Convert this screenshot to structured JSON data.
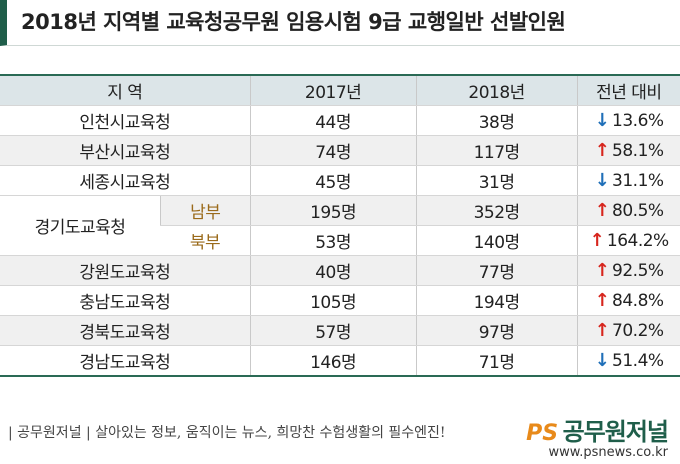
{
  "header": {
    "title": "2018년 지역별 교육청공무원 임용시험 9급 교행일반 선발인원"
  },
  "table": {
    "columns": [
      "지 역",
      "2017년",
      "2018년",
      "전년 대비"
    ],
    "rows": [
      {
        "region": "인천시교육청",
        "y2017": "44명",
        "y2018": "38명",
        "change": "13.6%"
      },
      {
        "region": "부산시교육청",
        "y2017": "74명",
        "y2018": "117명",
        "change": "58.1%"
      },
      {
        "region": "세종시교육청",
        "y2017": "45명",
        "y2018": "31명",
        "change": "31.1%"
      },
      {
        "region": "경기도교육청",
        "subrows": [
          {
            "sub": "남부",
            "y2017": "195명",
            "y2018": "352명",
            "change": "80.5%"
          },
          {
            "sub": "북부",
            "y2017": "53명",
            "y2018": "140명",
            "change": "164.2%"
          }
        ]
      },
      {
        "region": "강원도교육청",
        "y2017": "40명",
        "y2018": "77명",
        "change": "92.5%"
      },
      {
        "region": "충남도교육청",
        "y2017": "105명",
        "y2018": "194명",
        "change": "84.8%"
      },
      {
        "region": "경북도교육청",
        "y2017": "57명",
        "y2018": "97명",
        "change": "70.2%"
      },
      {
        "region": "경남도교육청",
        "y2017": "146명",
        "y2018": "71명",
        "change": "51.4%"
      }
    ]
  },
  "footer": {
    "source": "공무원저널",
    "slogan": "살아있는 정보, 움직이는 뉴스, 희망찬 수험생활의 필수엔진!",
    "logo_ps": "PS",
    "logo_name": "공무원저널",
    "url": "www.psnews.co.kr"
  }
}
